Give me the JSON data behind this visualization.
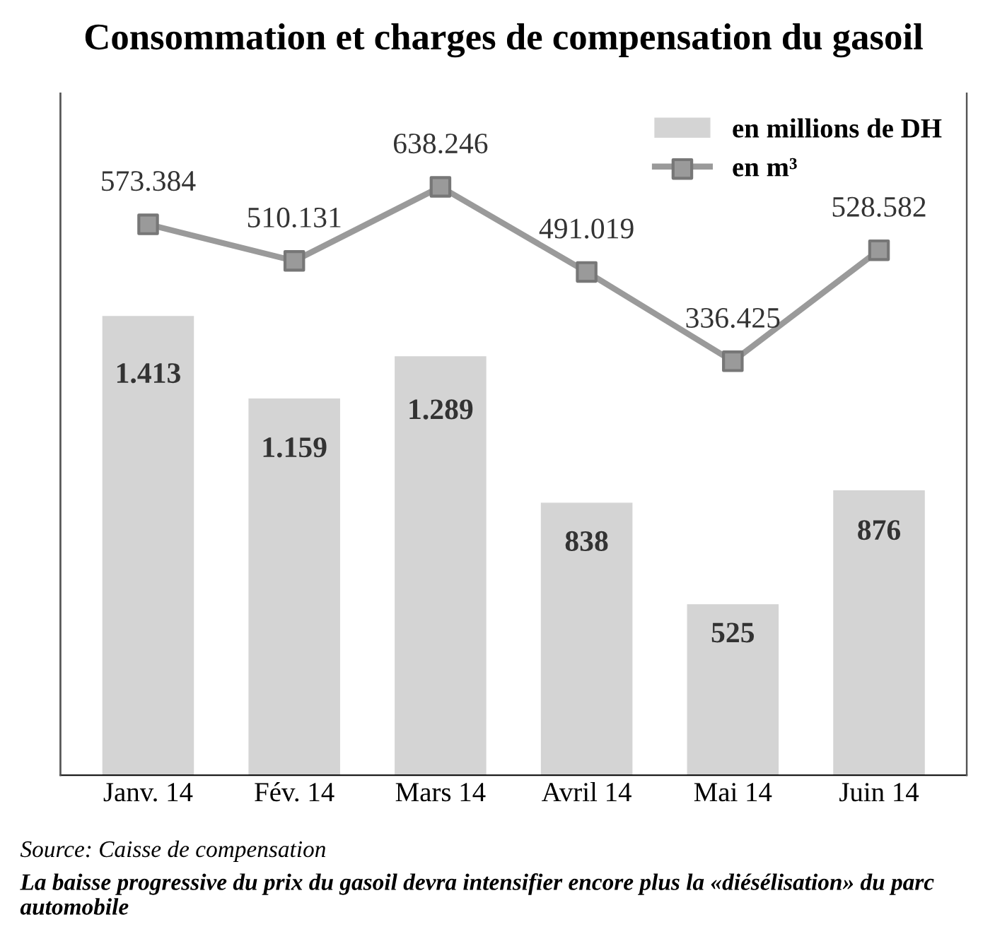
{
  "chart_data": {
    "type": "bar",
    "title": "Consommation et charges de compensation du gasoil",
    "categories": [
      "Janv. 14",
      "Fév. 14",
      "Mars 14",
      "Avril 14",
      "Mai 14",
      "Juin 14"
    ],
    "series": [
      {
        "name": "en millions de DH",
        "color": "#d4d4d4",
        "values": [
          1413,
          1159,
          1289,
          838,
          525,
          876
        ],
        "value_labels": [
          "1.413",
          "1.159",
          "1.289",
          "838",
          "525",
          "876"
        ]
      },
      {
        "name": "en m³",
        "type": "line",
        "axis": "y2",
        "color": "#9a9a9a",
        "marker": "square",
        "values": [
          573384,
          510131,
          638246,
          491019,
          336425,
          528582
        ],
        "value_labels": [
          "573.384",
          "510.131",
          "638.246",
          "491.019",
          "336.425",
          "528.582"
        ]
      }
    ],
    "ylim": [
      0,
      2100
    ],
    "y2lim": [
      -380000,
      800000
    ],
    "tick_labels": "x",
    "grid": false,
    "legend": "top right",
    "annotations": [
      "Source: Caisse de compensation",
      "La baisse progressive du prix du gasoil devra intensifier encore plus la «diésélisation» du parc automobile"
    ]
  }
}
